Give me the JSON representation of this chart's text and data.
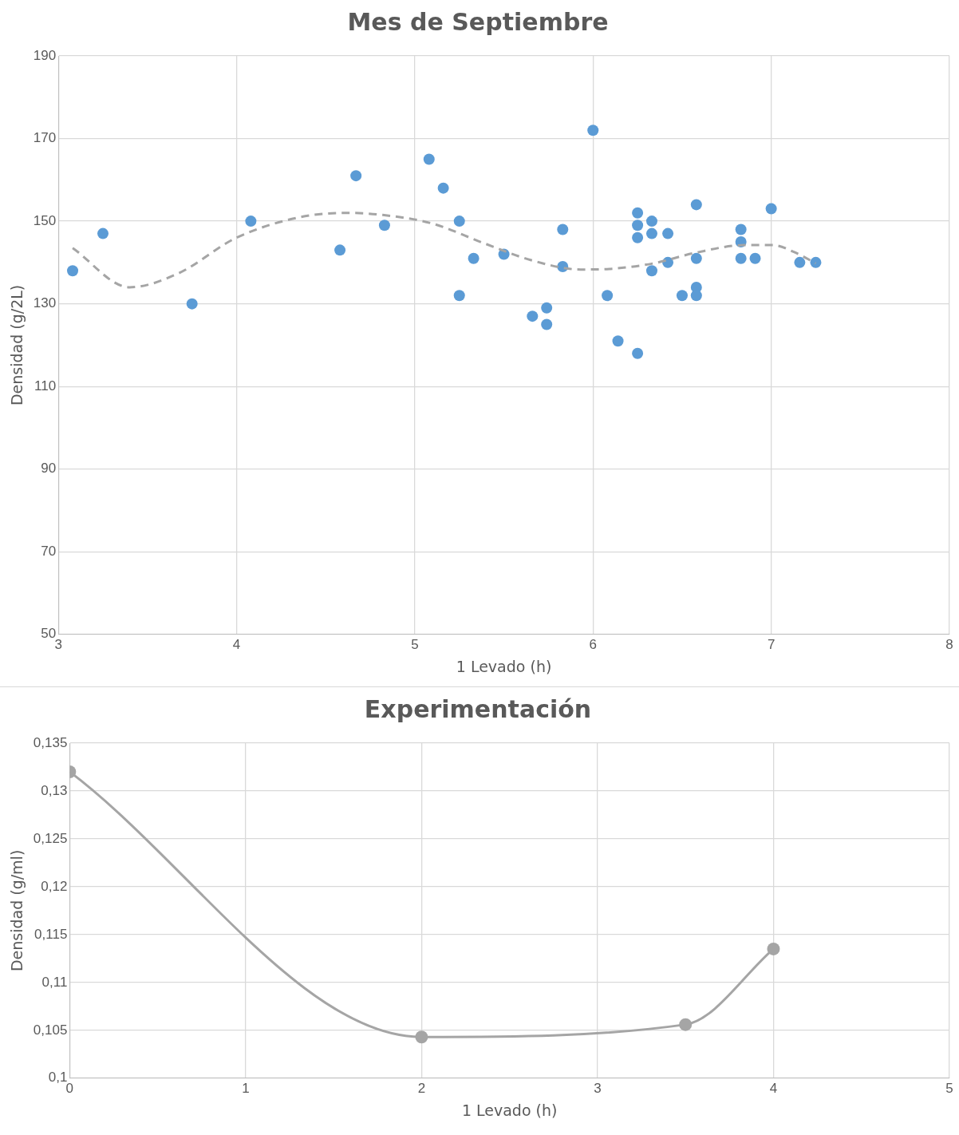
{
  "chart_data": [
    {
      "type": "scatter",
      "title": "Mes de Septiembre",
      "xlabel": "1 Levado (h)",
      "ylabel": "Densidad (g/2L)",
      "xlim": [
        3,
        8
      ],
      "xticks": [
        3,
        4,
        5,
        6,
        7,
        8
      ],
      "ylim": [
        50,
        190
      ],
      "yticks": [
        50,
        70,
        90,
        110,
        130,
        150,
        170,
        190
      ],
      "grid": true,
      "legend": false,
      "series": [
        {
          "type": "scatter",
          "color": "#5b9bd5",
          "marker": "circle",
          "x": [
            3.08,
            3.25,
            3.75,
            4.08,
            4.58,
            4.67,
            4.83,
            5.08,
            5.16,
            5.25,
            5.25,
            5.33,
            5.5,
            5.66,
            5.74,
            5.74,
            5.83,
            5.83,
            6.0,
            6.08,
            6.14,
            6.25,
            6.25,
            6.25,
            6.25,
            6.33,
            6.33,
            6.33,
            6.42,
            6.42,
            6.5,
            6.58,
            6.58,
            6.58,
            6.58,
            6.83,
            6.83,
            6.83,
            6.91,
            7.0,
            7.16,
            7.25
          ],
          "values": [
            138,
            147,
            130,
            150,
            143,
            161,
            149,
            165,
            158,
            150,
            132,
            141,
            142,
            127,
            129,
            125,
            148,
            139,
            172,
            132,
            121,
            152,
            149,
            146,
            118,
            150,
            147,
            138,
            147,
            140,
            132,
            154,
            141,
            134,
            132,
            148,
            145,
            141,
            141,
            153,
            140,
            140
          ]
        },
        {
          "type": "line",
          "color": "#a5a5a5",
          "line_style": "dashed",
          "marker": "none",
          "x": [
            3.08,
            3.4,
            3.67,
            4.0,
            4.36,
            4.62,
            4.82,
            5.1,
            5.38,
            5.65,
            5.93,
            6.11,
            6.34,
            6.57,
            6.85,
            7.01,
            7.13,
            7.25
          ],
          "values": [
            143.5,
            134,
            137.3,
            146,
            151,
            152,
            151.5,
            149.4,
            144.8,
            140.6,
            138.3,
            138.5,
            139.8,
            142.3,
            144.2,
            144.2,
            142.5,
            139.8
          ]
        }
      ]
    },
    {
      "type": "line",
      "title": "Experimentación",
      "xlabel": "1 Levado (h)",
      "ylabel": "Densidad (g/ml)",
      "xlim": [
        0,
        5
      ],
      "xticks": [
        0,
        1,
        2,
        3,
        4,
        5
      ],
      "ylim": [
        0.1,
        0.135
      ],
      "yticks": [
        {
          "value": 0.1,
          "label": "0,1"
        },
        {
          "value": 0.105,
          "label": "0,105"
        },
        {
          "value": 0.11,
          "label": "0,11"
        },
        {
          "value": 0.115,
          "label": "0,115"
        },
        {
          "value": 0.12,
          "label": "0,12"
        },
        {
          "value": 0.125,
          "label": "0,125"
        },
        {
          "value": 0.13,
          "label": "0,13"
        },
        {
          "value": 0.135,
          "label": "0,135"
        }
      ],
      "grid": true,
      "legend": false,
      "marker": "circle",
      "line_style": "solid",
      "series": [
        {
          "color": "#a5a5a5",
          "x": [
            0,
            2,
            3.5,
            4
          ],
          "values": [
            0.132,
            0.1043,
            0.1056,
            0.1135
          ]
        }
      ]
    }
  ]
}
